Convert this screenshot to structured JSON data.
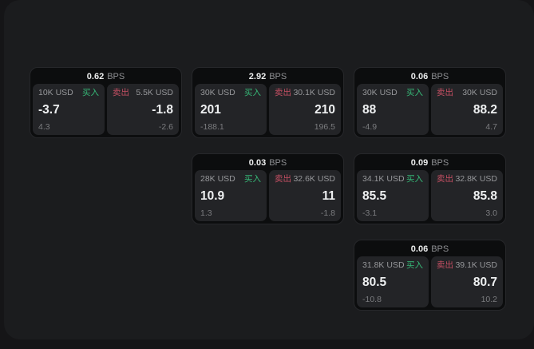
{
  "panel": {
    "bg": "#1b1c1e"
  },
  "units": {
    "bps": "BPS"
  },
  "side_labels": {
    "buy": "买入",
    "sell": "卖出"
  },
  "colors": {
    "buy_accent": "#36b877",
    "sell_accent": "#c44f63",
    "card_bg": "#0c0d0e",
    "subpanel_bg": "#232427",
    "value_text": "#eef0f1",
    "label_text": "#97989b",
    "delta_text": "#7b7c7f"
  },
  "cards": [
    {
      "bps": "0.62",
      "grid": {
        "row": 1,
        "col": 1
      },
      "buy": {
        "size": "10K USD",
        "value": "-3.7",
        "delta": "4.3"
      },
      "sell": {
        "size": "5.5K USD",
        "value": "-1.8",
        "delta": "-2.6"
      }
    },
    {
      "bps": "2.92",
      "grid": {
        "row": 1,
        "col": 2
      },
      "buy": {
        "size": "30K USD",
        "value": "201",
        "delta": "-188.1"
      },
      "sell": {
        "size": "30.1K USD",
        "value": "210",
        "delta": "196.5"
      }
    },
    {
      "bps": "0.06",
      "grid": {
        "row": 1,
        "col": 3
      },
      "buy": {
        "size": "30K USD",
        "value": "88",
        "delta": "-4.9"
      },
      "sell": {
        "size": "30K USD",
        "value": "88.2",
        "delta": "4.7"
      }
    },
    {
      "bps": "0.03",
      "grid": {
        "row": 2,
        "col": 2
      },
      "buy": {
        "size": "28K USD",
        "value": "10.9",
        "delta": "1.3"
      },
      "sell": {
        "size": "32.6K USD",
        "value": "11",
        "delta": "-1.8"
      }
    },
    {
      "bps": "0.09",
      "grid": {
        "row": 2,
        "col": 3
      },
      "buy": {
        "size": "34.1K USD",
        "value": "85.5",
        "delta": "-3.1"
      },
      "sell": {
        "size": "32.8K USD",
        "value": "85.8",
        "delta": "3.0"
      }
    },
    {
      "bps": "0.06",
      "grid": {
        "row": 3,
        "col": 3
      },
      "buy": {
        "size": "31.8K USD",
        "value": "80.5",
        "delta": "-10.8"
      },
      "sell": {
        "size": "39.1K USD",
        "value": "80.7",
        "delta": "10.2"
      }
    }
  ]
}
